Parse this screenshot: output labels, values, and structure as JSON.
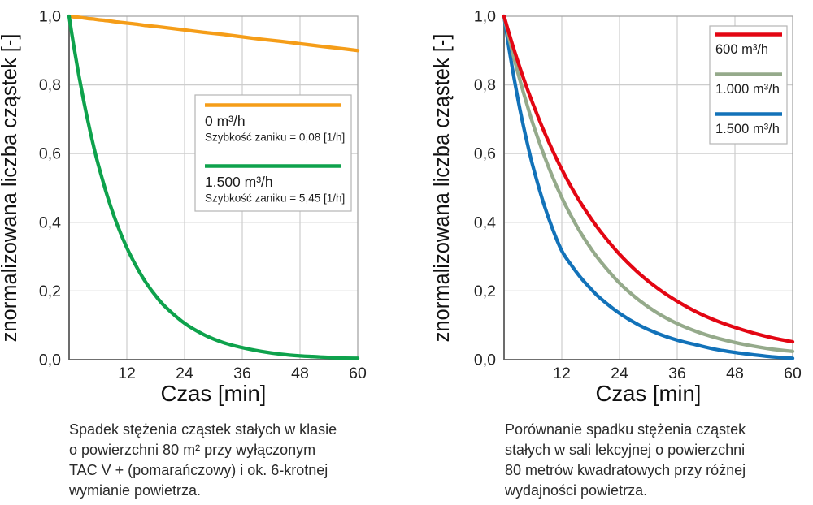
{
  "page": {
    "background": "#ffffff"
  },
  "palette": {
    "grid": "#cdcdcd",
    "frame": "#a6a6a6",
    "axis": "#5f5f5f",
    "tick_text": "#222222",
    "label_text": "#111111",
    "legend_border": "#b5b5b5",
    "legend_bg": "#ffffff",
    "caption_text": "#2b2b2b"
  },
  "chart_data": [
    {
      "id": "left",
      "type": "line",
      "title": "",
      "xlabel": "Czas [min]",
      "ylabel": "znormalizowana liczba cząstek [-]",
      "xlim": [
        0,
        60
      ],
      "ylim": [
        0.0,
        1.0
      ],
      "xticks": [
        12,
        24,
        36,
        48,
        60
      ],
      "xtick_labels": [
        "12",
        "24",
        "36",
        "48",
        "60"
      ],
      "yticks": [
        0.0,
        0.2,
        0.4,
        0.6,
        0.8,
        1.0
      ],
      "ytick_labels": [
        "0,0",
        "0,2",
        "0,4",
        "0,6",
        "0,8",
        "1,0"
      ],
      "grid": true,
      "legend_position": "inside-middle-right",
      "x": [
        0,
        1,
        2,
        3,
        4,
        5,
        6,
        8,
        10,
        12,
        14,
        16,
        18,
        20,
        24,
        28,
        32,
        36,
        40,
        44,
        48,
        52,
        56,
        60
      ],
      "series": [
        {
          "name": "0 m³/h",
          "sublabel": "Szybkość zaniku = 0,08 [1/h]",
          "decay_rate_per_h": "0,08",
          "color": "#F59D18",
          "values": [
            1.0,
            0.998,
            0.997,
            0.995,
            0.993,
            0.992,
            0.99,
            0.987,
            0.983,
            0.98,
            0.977,
            0.973,
            0.97,
            0.967,
            0.96,
            0.953,
            0.947,
            0.94,
            0.933,
            0.927,
            0.92,
            0.913,
            0.907,
            0.9
          ]
        },
        {
          "name": "1.500 m³/h",
          "sublabel": "Szybkość zaniku = 5,45 [1/h]",
          "decay_rate_per_h": "5,45",
          "color": "#0EA24C",
          "values": [
            1.0,
            0.911,
            0.83,
            0.756,
            0.689,
            0.627,
            0.571,
            0.474,
            0.393,
            0.326,
            0.271,
            0.224,
            0.186,
            0.154,
            0.106,
            0.073,
            0.05,
            0.035,
            0.024,
            0.016,
            0.011,
            0.008,
            0.005,
            0.004
          ]
        }
      ],
      "caption_lines": [
        "Spadek stężenia cząstek stałych w klasie",
        "o powierzchni 80 m² przy wyłączonym",
        "TAC V + (pomarańczowy) i ok. 6-krotnej",
        "wymianie powietrza."
      ]
    },
    {
      "id": "right",
      "type": "line",
      "title": "",
      "xlabel": "Czas [min]",
      "ylabel": "znormalizowana liczba cząstek [-]",
      "xlim": [
        0,
        60
      ],
      "ylim": [
        0.0,
        1.0
      ],
      "xticks": [
        12,
        24,
        36,
        48,
        60
      ],
      "xtick_labels": [
        "12",
        "24",
        "36",
        "48",
        "60"
      ],
      "yticks": [
        0.0,
        0.2,
        0.4,
        0.6,
        0.8,
        1.0
      ],
      "ytick_labels": [
        "0,0",
        "0,2",
        "0,4",
        "0,6",
        "0,8",
        "1,0"
      ],
      "grid": true,
      "legend_position": "inside-top-right",
      "x": [
        0,
        1,
        2,
        3,
        4,
        5,
        6,
        8,
        10,
        12,
        14,
        16,
        18,
        20,
        24,
        28,
        32,
        36,
        40,
        44,
        48,
        52,
        56,
        60
      ],
      "series": [
        {
          "name": "600 m³/h",
          "color": "#E30613",
          "values": [
            1.0,
            0.952,
            0.906,
            0.863,
            0.821,
            0.782,
            0.745,
            0.675,
            0.612,
            0.554,
            0.502,
            0.455,
            0.413,
            0.374,
            0.307,
            0.252,
            0.207,
            0.17,
            0.139,
            0.114,
            0.094,
            0.077,
            0.063,
            0.052
          ]
        },
        {
          "name": "1.000 m³/h",
          "color": "#95AA8B",
          "values": [
            1.0,
            0.939,
            0.882,
            0.829,
            0.779,
            0.732,
            0.687,
            0.607,
            0.535,
            0.472,
            0.417,
            0.368,
            0.325,
            0.287,
            0.223,
            0.174,
            0.135,
            0.105,
            0.082,
            0.064,
            0.05,
            0.039,
            0.03,
            0.024
          ]
        },
        {
          "name": "1.500 m³/h",
          "color": "#1272B9",
          "values": [
            1.0,
            0.909,
            0.826,
            0.75,
            0.682,
            0.62,
            0.563,
            0.465,
            0.384,
            0.317,
            0.275,
            0.238,
            0.207,
            0.179,
            0.135,
            0.101,
            0.076,
            0.057,
            0.043,
            0.03,
            0.021,
            0.014,
            0.008,
            0.004
          ]
        }
      ],
      "caption_lines": [
        "Porównanie spadku stężenia cząstek",
        "stałych w sali lekcyjnej o powierzchni",
        "80 metrów kwadratowych przy różnej",
        "wydajności powietrza."
      ]
    }
  ]
}
